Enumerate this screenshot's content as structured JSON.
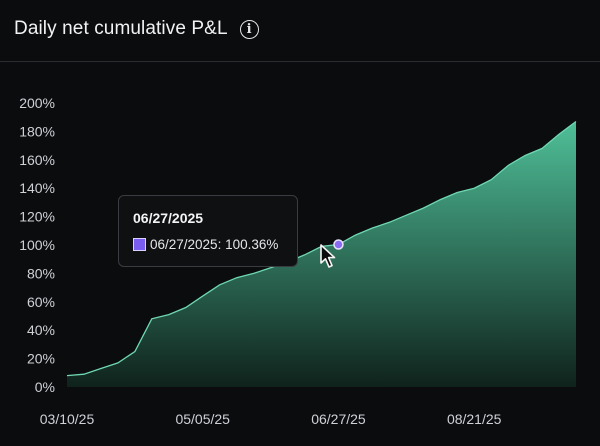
{
  "header": {
    "title": "Daily net cumulative P&L",
    "info_icon": "info-icon"
  },
  "tooltip": {
    "title": "06/27/2025",
    "label": "06/27/2025: 100.36%",
    "swatch_color": "#7b5cf0"
  },
  "colors": {
    "area_top": "#4fbf98",
    "area_bottom": "#0f221c",
    "line": "#6fd8b2",
    "marker": "#8a6cf2"
  },
  "chart_data": {
    "type": "area",
    "title": "Daily net cumulative P&L",
    "xlabel": "",
    "ylabel": "",
    "ylim": [
      0,
      200
    ],
    "yticks": [
      "0%",
      "20%",
      "40%",
      "60%",
      "80%",
      "100%",
      "120%",
      "140%",
      "160%",
      "180%",
      "200%"
    ],
    "xticks": [
      "03/10/25",
      "05/05/25",
      "06/27/25",
      "08/21/25"
    ],
    "grid": false,
    "series": [
      {
        "name": "",
        "x": [
          "03/10/25",
          "03/17/25",
          "03/24/25",
          "03/31/25",
          "04/07/25",
          "04/14/25",
          "04/21/25",
          "04/28/25",
          "05/05/25",
          "05/12/25",
          "05/19/25",
          "05/26/25",
          "06/02/25",
          "06/09/25",
          "06/16/25",
          "06/23/25",
          "06/27/25",
          "07/04/25",
          "07/11/25",
          "07/18/25",
          "07/25/25",
          "08/01/25",
          "08/08/25",
          "08/15/25",
          "08/21/25",
          "08/28/25",
          "09/04/25",
          "09/11/25",
          "09/18/25",
          "09/25/25",
          "10/02/25"
        ],
        "values": [
          8,
          9,
          13,
          17,
          25,
          48,
          51,
          56,
          64,
          72,
          77,
          80,
          84,
          88,
          93,
          99,
          100.36,
          107,
          112,
          116,
          121,
          126,
          132,
          137,
          140,
          146,
          156,
          163,
          168,
          178,
          187
        ]
      }
    ]
  }
}
